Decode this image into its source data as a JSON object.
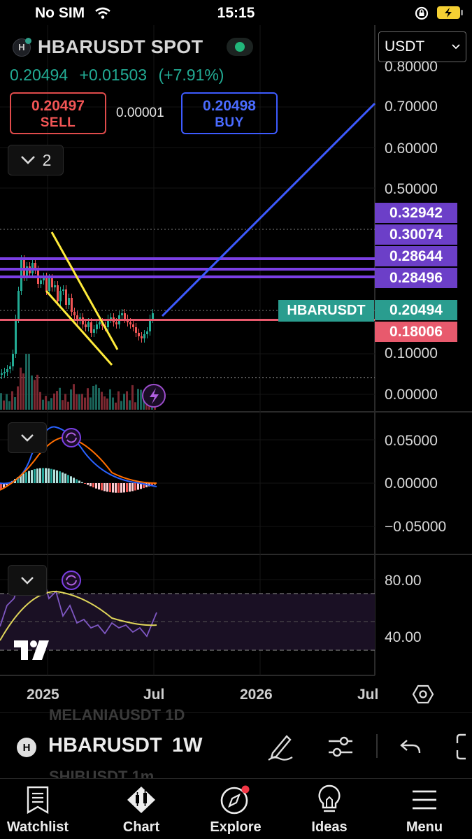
{
  "status_bar": {
    "carrier": "No SIM",
    "time": "15:15"
  },
  "header": {
    "symbol": "HBARUSDT SPOT",
    "last_price": "0.20494",
    "change": "+0.01503",
    "change_pct": "(+7.91%)",
    "sell_price": "0.20497",
    "sell_label": "SELL",
    "spread": "0.00001",
    "buy_price": "0.20498",
    "buy_label": "BUY",
    "indicator_count": "2",
    "logo_letter": "H"
  },
  "currency_select": "USDT",
  "price_axis": {
    "top_partial": "0.80000",
    "labels": [
      "0.70000",
      "0.60000",
      "0.50000",
      "0.10000",
      "0.00000"
    ],
    "level_tags": [
      "0.32942",
      "0.30074",
      "0.28644",
      "0.28496"
    ],
    "current_tag": "0.20494",
    "support_tag": "0.18006",
    "symbol_tag": "HBARUSDT"
  },
  "macd_axis": [
    "0.05000",
    "0.00000",
    "−0.05000"
  ],
  "rsi_axis": [
    "80.00",
    "40.00"
  ],
  "time_axis": [
    "2025",
    "Jul",
    "2026",
    "Jul"
  ],
  "colors": {
    "up": "#22ab94",
    "down": "#f25555",
    "level": "#7b3fe4",
    "trendline": "#3d5afe",
    "wedge": "#ffeb3b",
    "support": "#e85a6d"
  },
  "toolbar": {
    "symbol": "HBARUSDT",
    "interval": "1W",
    "ghost_top": "MELANIAUSDT 1D",
    "ghost_bottom": "SHIBUSDT 1m"
  },
  "tabs": [
    "Watchlist",
    "Chart",
    "Explore",
    "Ideas",
    "Menu"
  ]
}
